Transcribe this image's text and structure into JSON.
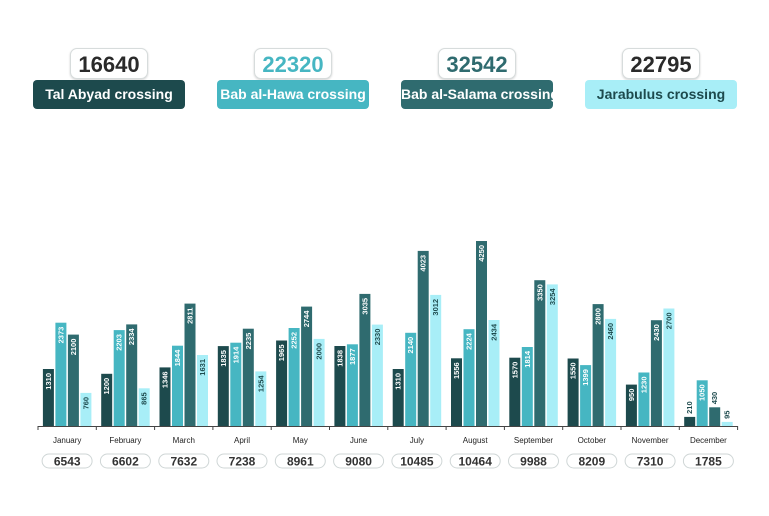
{
  "legend": [
    {
      "total": "16640",
      "label": "Tal Abyad crossing",
      "color": "#1d4a4d",
      "text_color": "#ffffff",
      "total_color": "#2a2a2a"
    },
    {
      "total": "22320",
      "label": "Bab al-Hawa crossing",
      "color": "#46b6c2",
      "text_color": "#ffffff",
      "total_color": "#46b6c2"
    },
    {
      "total": "32542",
      "label": "Bab al-Salama crossing",
      "color": "#2f6b6f",
      "text_color": "#ffffff",
      "total_color": "#2f6b6f"
    },
    {
      "total": "22795",
      "label": "Jarabulus crossing",
      "color": "#a8eef7",
      "text_color": "#1d4a4d",
      "total_color": "#2a2a2a"
    }
  ],
  "chart_data": {
    "type": "bar",
    "categories": [
      "January",
      "February",
      "March",
      "April",
      "May",
      "June",
      "July",
      "August",
      "September",
      "October",
      "November",
      "December"
    ],
    "series": [
      {
        "name": "Tal Abyad crossing",
        "color": "#1d4a4d",
        "values": [
          1310,
          1200,
          1346,
          1835,
          1965,
          1838,
          1310,
          1556,
          1570,
          1550,
          950,
          210
        ]
      },
      {
        "name": "Bab al-Hawa crossing",
        "color": "#46b6c2",
        "values": [
          2373,
          2203,
          1844,
          1914,
          2252,
          1877,
          2140,
          2224,
          1814,
          1399,
          1230,
          1050
        ]
      },
      {
        "name": "Bab al-Salama crossing",
        "color": "#2f6b6f",
        "values": [
          2100,
          2334,
          2811,
          2235,
          2744,
          3035,
          4023,
          4250,
          3350,
          2800,
          2430,
          430
        ]
      },
      {
        "name": "Jarabulus crossing",
        "color": "#a8eef7",
        "values": [
          760,
          865,
          1631,
          1254,
          2000,
          2330,
          3012,
          2434,
          3254,
          2460,
          2700,
          95
        ]
      }
    ],
    "totals": [
      "6543",
      "6602",
      "7632",
      "7238",
      "8961",
      "9080",
      "10485",
      "10464",
      "9988",
      "8209",
      "7310",
      "1785"
    ],
    "ylim": [
      0,
      4500
    ],
    "grid": false,
    "legend_position": "top"
  }
}
